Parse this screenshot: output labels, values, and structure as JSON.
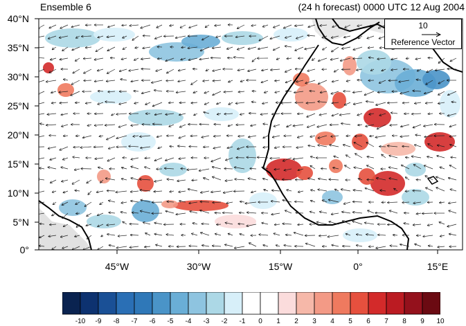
{
  "title_left": "Ensemble 6",
  "title_right": "(24 h forecast) 0000 UTC 12 Aug 2004",
  "lat_labels": [
    "40°N",
    "35°N",
    "30°N",
    "25°N",
    "20°N",
    "15°N",
    "10°N",
    "5°N",
    "0°"
  ],
  "lon_labels": [
    "45°W",
    "30°W",
    "15°W",
    "0°",
    "15°E"
  ],
  "reference_vector": {
    "magnitude": "10",
    "label": "Reference Vector"
  },
  "colorbar": {
    "labels": [
      "-10",
      "-9",
      "-8",
      "-7",
      "-6",
      "-5",
      "-4",
      "-3",
      "-2",
      "-1",
      "0",
      "1",
      "2",
      "3",
      "4",
      "5",
      "6",
      "7",
      "8",
      "9",
      "10"
    ],
    "colors": [
      "#0a2350",
      "#0d3270",
      "#1a5096",
      "#2a6fb5",
      "#2f78b8",
      "#4a94c8",
      "#6aaed6",
      "#8ec4e0",
      "#acd8e6",
      "#d7eff9",
      "#ffffff",
      "#ffffff",
      "#fbdcdc",
      "#f6b8a9",
      "#f39a86",
      "#ef7a5f",
      "#e6503e",
      "#d32a2a",
      "#bb1b22",
      "#94111c",
      "#6b0a12"
    ]
  }
}
